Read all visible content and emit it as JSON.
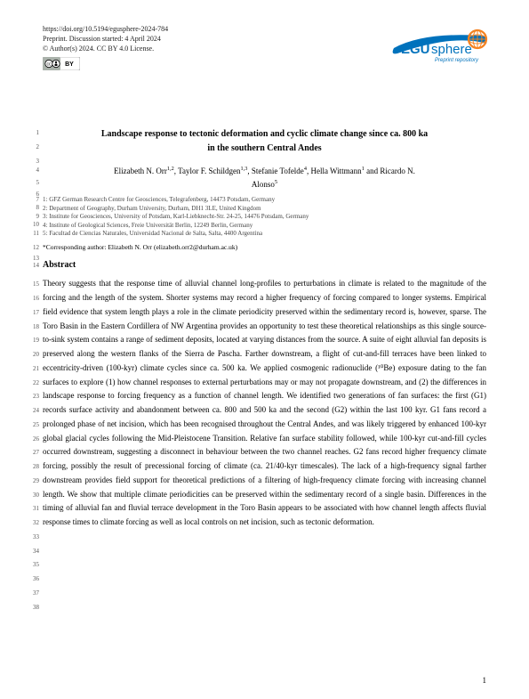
{
  "meta": {
    "doi": "https://doi.org/10.5194/egusphere-2024-784",
    "preprint_line": "Preprint. Discussion started: 4 April 2024",
    "copyright": "© Author(s) 2024. CC BY 4.0 License."
  },
  "logo": {
    "text_main": "EGU",
    "text_suffix": "sphere",
    "subtitle": "Preprint repository",
    "swoosh_color": "#0072bc",
    "globe_color": "#f58220"
  },
  "title": {
    "line1": "Landscape response to tectonic deformation and cyclic climate change since ca. 800 ka",
    "line2": "in the southern Central Andes"
  },
  "authors": {
    "line1": "Elizabeth N. Orr",
    "sup1": "1,2",
    "a2": ", Taylor F. Schildgen",
    "sup2": "1,3",
    "a3": ", Stefanie Tofelde",
    "sup3": "4",
    "a4": ", Hella Wittmann",
    "sup4": "1",
    "a5": " and Ricardo N.",
    "line2": "Alonso",
    "sup5": "5"
  },
  "affiliations": {
    "a1": "1: GFZ German Research Centre for Geosciences, Telegrafenberg, 14473 Potsdam, Germany",
    "a2": "2: Department of Geography, Durham University, Durham, DH1 3LE, United Kingdom",
    "a3": "3: Institute for Geosciences, University of Potsdam, Karl-Liebknecht-Str. 24-25, 14476 Potsdam, Germany",
    "a4": "4: Institute of Geological Sciences, Freie Universität Berlin, 12249 Berlin, Germany",
    "a5": "5: Facultad de Ciencias Naturales, Universidad Nacional de Salta, Salta, 4400 Argentina"
  },
  "corresponding": "*Corresponding author: Elizabeth N. Orr (elizabeth.orr2@durham.ac.uk)",
  "abstract_heading": "Abstract",
  "abstract": "Theory suggests that the response time of alluvial channel long-profiles to perturbations in climate is related to the magnitude of the forcing and the length of the system. Shorter systems may record a higher frequency of forcing compared to longer systems. Empirical field evidence that system length plays a role in the climate periodicity preserved within the sedimentary record is, however, sparse. The Toro Basin in the Eastern Cordillera of NW Argentina provides an opportunity to test these theoretical relationships as this single source-to-sink system contains a range of sediment deposits, located at varying distances from the source. A suite of eight alluvial fan deposits is preserved along the western flanks of the Sierra de Pascha. Farther downstream, a flight of cut-and-fill terraces have been linked to eccentricity-driven (100-kyr) climate cycles since ca. 500 ka. We applied cosmogenic radionuclide (¹⁰Be) exposure dating to the fan surfaces to explore (1) how channel responses to external perturbations may or may not propagate downstream, and (2) the differences in landscape response to forcing frequency as a function of channel length. We identified two generations of fan surfaces: the first (G1) records surface activity and abandonment between ca. 800 and 500 ka and the second (G2) within the last 100 kyr. G1 fans record a prolonged phase of net incision, which has been recognised throughout the Central Andes, and was likely triggered by enhanced 100-kyr global glacial cycles following the Mid-Pleistocene Transition. Relative fan surface stability followed, while 100-kyr cut-and-fill cycles occurred downstream, suggesting a disconnect in behaviour between the two channel reaches. G2 fans record higher frequency climate forcing, possibly the result of precessional forcing of climate (ca. 21/40-kyr timescales). The lack of a high-frequency signal farther downstream provides field support for theoretical predictions of a filtering of high-frequency climate forcing with increasing channel length. We show that multiple climate periodicities can be preserved within the sedimentary record of a single basin. Differences in the timing of alluvial fan and fluvial terrace development in the Toro Basin appears to be associated with how channel length affects fluvial response times to climate forcing as well as local controls on net incision, such as tectonic deformation.",
  "line_numbers": {
    "title1": "1",
    "title2": "2",
    "title_blank": "3",
    "auth1": "4",
    "auth2": "5",
    "auth_blank": "6",
    "aff1": "7",
    "aff2": "8",
    "aff3": "9",
    "aff4": "10",
    "aff5": "11",
    "corr": "12",
    "corr_blank": "13",
    "abs_head": "14"
  },
  "page_number": "1"
}
